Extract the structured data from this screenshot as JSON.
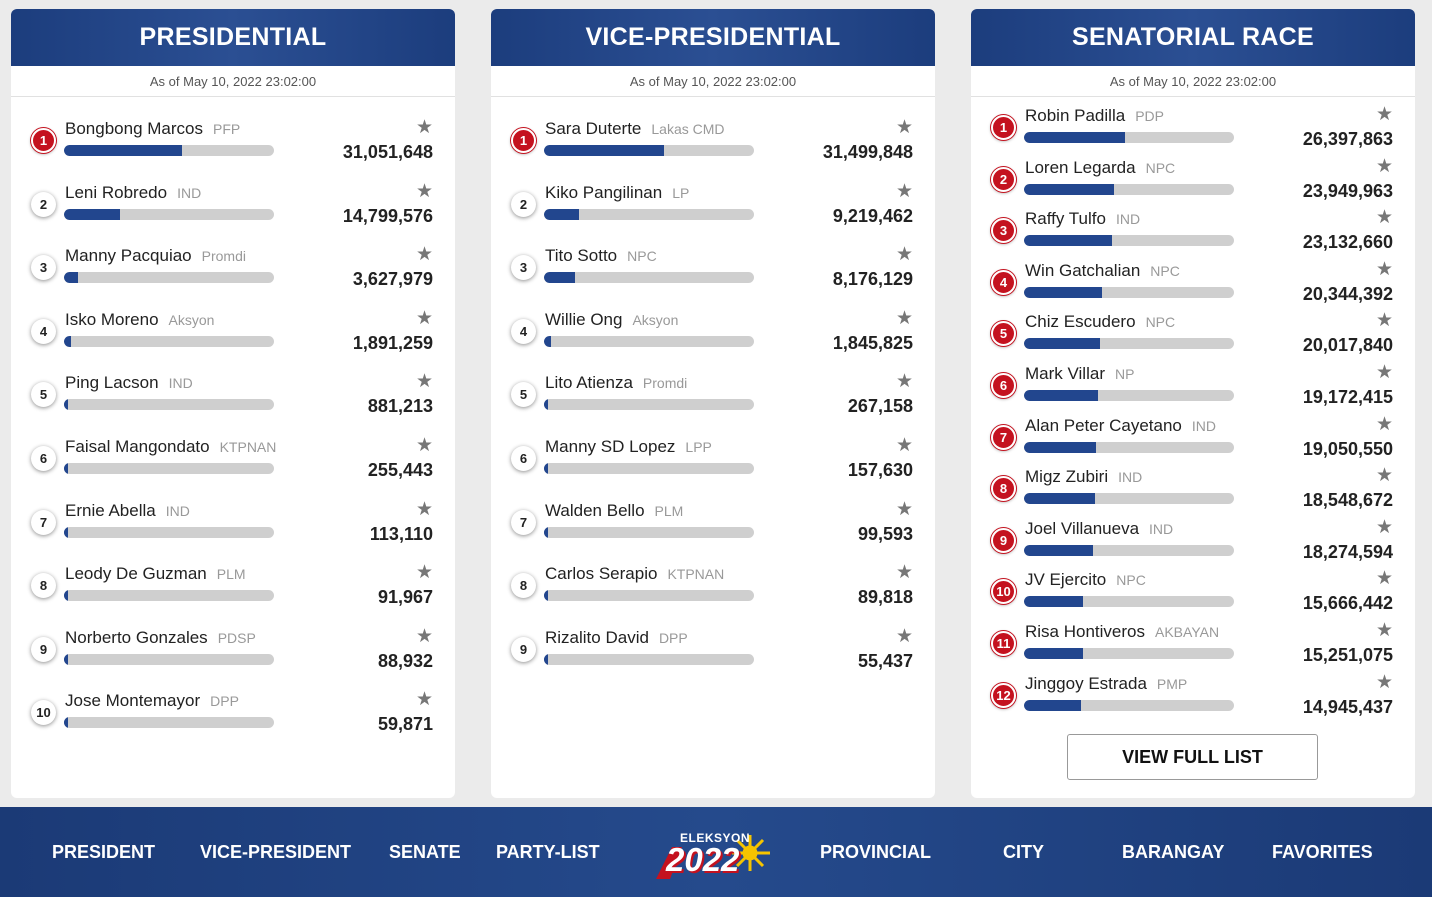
{
  "panels": [
    {
      "title": "PRESIDENTIAL",
      "as_of": "As of May 10, 2022 23:02:00",
      "candidates": [
        {
          "rank": "1",
          "name": "Bongbong Marcos",
          "party": "PFP",
          "votes": "31,051,648",
          "share": 0.562
        },
        {
          "rank": "2",
          "name": "Leni Robredo",
          "party": "IND",
          "votes": "14,799,576",
          "share": 0.268
        },
        {
          "rank": "3",
          "name": "Manny Pacquiao",
          "party": "Promdi",
          "votes": "3,627,979",
          "share": 0.066
        },
        {
          "rank": "4",
          "name": "Isko Moreno",
          "party": "Aksyon",
          "votes": "1,891,259",
          "share": 0.034
        },
        {
          "rank": "5",
          "name": "Ping Lacson",
          "party": "IND",
          "votes": "881,213",
          "share": 0.016
        },
        {
          "rank": "6",
          "name": "Faisal Mangondato",
          "party": "KTPNAN",
          "votes": "255,443",
          "share": 0.005
        },
        {
          "rank": "7",
          "name": "Ernie Abella",
          "party": "IND",
          "votes": "113,110",
          "share": 0.002
        },
        {
          "rank": "8",
          "name": "Leody De Guzman",
          "party": "PLM",
          "votes": "91,967",
          "share": 0.002
        },
        {
          "rank": "9",
          "name": "Norberto Gonzales",
          "party": "PDSP",
          "votes": "88,932",
          "share": 0.002
        },
        {
          "rank": "10",
          "name": "Jose Montemayor",
          "party": "DPP",
          "votes": "59,871",
          "share": 0.001
        }
      ]
    },
    {
      "title": "VICE-PRESIDENTIAL",
      "as_of": "As of May 10, 2022 23:02:00",
      "candidates": [
        {
          "rank": "1",
          "name": "Sara Duterte",
          "party": "Lakas CMD",
          "votes": "31,499,848",
          "share": 0.57
        },
        {
          "rank": "2",
          "name": "Kiko Pangilinan",
          "party": "LP",
          "votes": "9,219,462",
          "share": 0.167
        },
        {
          "rank": "3",
          "name": "Tito Sotto",
          "party": "NPC",
          "votes": "8,176,129",
          "share": 0.148
        },
        {
          "rank": "4",
          "name": "Willie Ong",
          "party": "Aksyon",
          "votes": "1,845,825",
          "share": 0.033
        },
        {
          "rank": "5",
          "name": "Lito Atienza",
          "party": "Promdi",
          "votes": "267,158",
          "share": 0.005
        },
        {
          "rank": "6",
          "name": "Manny SD Lopez",
          "party": "LPP",
          "votes": "157,630",
          "share": 0.003
        },
        {
          "rank": "7",
          "name": "Walden Bello",
          "party": "PLM",
          "votes": "99,593",
          "share": 0.002
        },
        {
          "rank": "8",
          "name": "Carlos Serapio",
          "party": "KTPNAN",
          "votes": "89,818",
          "share": 0.002
        },
        {
          "rank": "9",
          "name": "Rizalito David",
          "party": "DPP",
          "votes": "55,437",
          "share": 0.001
        }
      ]
    },
    {
      "title": "SENATORIAL RACE",
      "as_of": "As of May 10, 2022 23:02:00",
      "candidates": [
        {
          "rank": "1",
          "name": "Robin Padilla",
          "party": "PDP",
          "votes": "26,397,863",
          "share": 0.48
        },
        {
          "rank": "2",
          "name": "Loren Legarda",
          "party": "NPC",
          "votes": "23,949,963",
          "share": 0.43
        },
        {
          "rank": "3",
          "name": "Raffy Tulfo",
          "party": "IND",
          "votes": "23,132,660",
          "share": 0.42
        },
        {
          "rank": "4",
          "name": "Win Gatchalian",
          "party": "NPC",
          "votes": "20,344,392",
          "share": 0.37
        },
        {
          "rank": "5",
          "name": "Chiz Escudero",
          "party": "NPC",
          "votes": "20,017,840",
          "share": 0.36
        },
        {
          "rank": "6",
          "name": "Mark Villar",
          "party": "NP",
          "votes": "19,172,415",
          "share": 0.35
        },
        {
          "rank": "7",
          "name": "Alan Peter Cayetano",
          "party": "IND",
          "votes": "19,050,550",
          "share": 0.345
        },
        {
          "rank": "8",
          "name": "Migz Zubiri",
          "party": "IND",
          "votes": "18,548,672",
          "share": 0.34
        },
        {
          "rank": "9",
          "name": "Joel Villanueva",
          "party": "IND",
          "votes": "18,274,594",
          "share": 0.33
        },
        {
          "rank": "10",
          "name": "JV Ejercito",
          "party": "NPC",
          "votes": "15,666,442",
          "share": 0.28
        },
        {
          "rank": "11",
          "name": "Risa Hontiveros",
          "party": "AKBAYAN",
          "votes": "15,251,075",
          "share": 0.28
        },
        {
          "rank": "12",
          "name": "Jinggoy Estrada",
          "party": "PMP",
          "votes": "14,945,437",
          "share": 0.27
        }
      ],
      "view_full_label": "VIEW FULL LIST"
    }
  ],
  "nav": {
    "items": [
      "PRESIDENT",
      "VICE-PRESIDENT",
      "SENATE",
      "PARTY-LIST",
      "PROVINCIAL",
      "CITY",
      "BARANGAY",
      "FAVORITES"
    ],
    "logo_small": "ELEKSYON",
    "logo_year": "2022"
  },
  "icons": {
    "favorite": "star-icon",
    "logo": "sun-logo-icon"
  },
  "colors": {
    "header_blue": "#1c3d7d",
    "bar_fill": "#22468e",
    "bar_track": "#cfcfcf",
    "rank_red": "#c4121f"
  }
}
